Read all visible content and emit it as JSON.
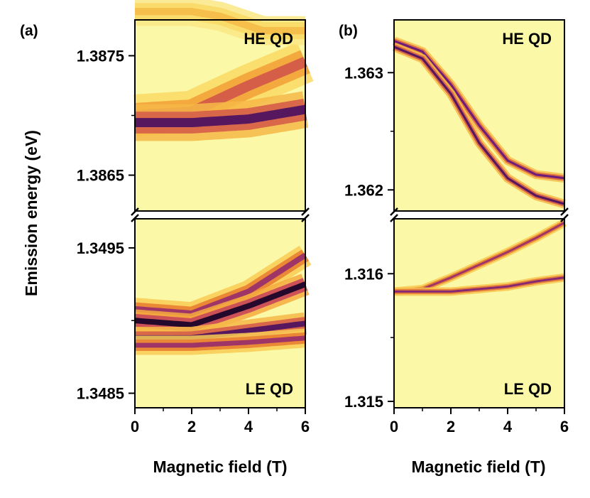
{
  "chart_data": [
    {
      "type": "heatmap",
      "panel_label": "(a)",
      "xlabel": "Magnetic field (T)",
      "ylabel": "Emission energy (eV)",
      "xlim": [
        0,
        6
      ],
      "x_ticks": [
        0,
        2,
        4,
        6
      ],
      "x_tick_labels": [
        "0",
        "2",
        "4",
        "6"
      ],
      "x_minor_ticks": [
        1,
        3,
        5
      ],
      "colors": {
        "colormap": "inferno-like",
        "low": "#fbf8a8",
        "high": "#0c0212",
        "gap": "#ffffff"
      },
      "segments": [
        {
          "name": "upper",
          "qd_label": "HE QD",
          "label_corner": "top-right",
          "ylim": [
            1.3862,
            1.3878
          ],
          "y_ticks": [
            1.3865,
            1.3875
          ],
          "y_tick_labels": [
            "1.3865",
            "1.3875"
          ],
          "y_minor_ticks": [
            1.387
          ],
          "lines": [
            {
              "points": [
                [
                  0,
                  1.387
                ],
                [
                  2,
                  1.38703
                ],
                [
                  4,
                  1.38725
                ],
                [
                  6,
                  1.38745
                ]
              ],
              "width_ev": 0.00016,
              "intensity": 0.55
            },
            {
              "points": [
                [
                  0,
                  1.38694
                ],
                [
                  2,
                  1.38694
                ],
                [
                  4,
                  1.38697
                ],
                [
                  6,
                  1.38705
                ]
              ],
              "width_ev": 0.00014,
              "intensity": 0.85
            },
            {
              "points": [
                [
                  0,
                  1.38787
                ],
                [
                  1,
                  1.38787
                ],
                [
                  2,
                  1.38787
                ],
                [
                  3,
                  1.38783
                ],
                [
                  4.5,
                  1.38771
                ],
                [
                  6,
                  1.38771
                ]
              ],
              "width_ev": 0.00011,
              "intensity": 0.28
            }
          ]
        },
        {
          "name": "lower",
          "qd_label": "LE QD",
          "label_corner": "bottom-right",
          "ylim": [
            1.3484,
            1.3497
          ],
          "y_ticks": [
            1.3485,
            1.3495
          ],
          "y_tick_labels": [
            "1.3485",
            "1.3495"
          ],
          "y_minor_ticks": [
            1.349
          ],
          "lines": [
            {
              "points": [
                [
                  0,
                  1.34908
                ],
                [
                  2,
                  1.34905
                ],
                [
                  4,
                  1.3492
                ],
                [
                  6,
                  1.34945
                ]
              ],
              "width_ev": 7e-05,
              "intensity": 0.7
            },
            {
              "points": [
                [
                  0,
                  1.349
                ],
                [
                  2,
                  1.34897
                ],
                [
                  4,
                  1.3491
                ],
                [
                  6,
                  1.34925
                ]
              ],
              "width_ev": 7e-05,
              "intensity": 0.95
            },
            {
              "points": [
                [
                  0,
                  1.34888
                ],
                [
                  2,
                  1.34888
                ],
                [
                  4,
                  1.34893
                ],
                [
                  6,
                  1.34898
                ]
              ],
              "width_ev": 7e-05,
              "intensity": 0.85
            },
            {
              "points": [
                [
                  0,
                  1.34883
                ],
                [
                  2,
                  1.34883
                ],
                [
                  4,
                  1.34885
                ],
                [
                  6,
                  1.34888
                ]
              ],
              "width_ev": 6e-05,
              "intensity": 0.7
            }
          ]
        }
      ]
    },
    {
      "type": "heatmap",
      "panel_label": "(b)",
      "xlabel": "Magnetic field (T)",
      "ylabel": "",
      "xlim": [
        0,
        6
      ],
      "x_ticks": [
        0,
        2,
        4,
        6
      ],
      "x_tick_labels": [
        "0",
        "2",
        "4",
        "6"
      ],
      "x_minor_ticks": [
        1,
        3,
        5
      ],
      "colors": {
        "colormap": "inferno-like",
        "low": "#fbf8a8",
        "high": "#0c0212",
        "gap": "#ffffff"
      },
      "segments": [
        {
          "name": "upper",
          "qd_label": "HE QD",
          "label_corner": "top-right",
          "ylim": [
            1.36182,
            1.36345
          ],
          "y_ticks": [
            1.362,
            1.363
          ],
          "y_tick_labels": [
            "1.362",
            "1.363"
          ],
          "y_minor_ticks": [
            1.3625
          ],
          "lines": [
            {
              "points": [
                [
                  0,
                  1.36327
                ],
                [
                  1,
                  1.36318
                ],
                [
                  2,
                  1.3629
                ],
                [
                  3,
                  1.36255
                ],
                [
                  4,
                  1.36225
                ],
                [
                  5,
                  1.36213
                ],
                [
                  6,
                  1.3621
                ]
              ],
              "width_ev": 3.5e-05,
              "intensity": 0.8
            },
            {
              "points": [
                [
                  0,
                  1.36322
                ],
                [
                  1,
                  1.36312
                ],
                [
                  2,
                  1.36282
                ],
                [
                  3,
                  1.3624
                ],
                [
                  4,
                  1.3621
                ],
                [
                  5,
                  1.36195
                ],
                [
                  6,
                  1.36188
                ]
              ],
              "width_ev": 3.5e-05,
              "intensity": 0.85
            }
          ]
        },
        {
          "name": "lower",
          "qd_label": "LE QD",
          "label_corner": "bottom-right",
          "ylim": [
            1.31495,
            1.31643
          ],
          "y_ticks": [
            1.315,
            1.316
          ],
          "y_tick_labels": [
            "1.315",
            "1.316"
          ],
          "y_minor_ticks": [
            1.3155
          ],
          "lines": [
            {
              "points": [
                [
                  0,
                  1.31586
                ],
                [
                  1,
                  1.31588
                ],
                [
                  2,
                  1.31597
                ],
                [
                  3,
                  1.31607
                ],
                [
                  4,
                  1.31617
                ],
                [
                  5,
                  1.31628
                ],
                [
                  6,
                  1.3164
                ]
              ],
              "width_ev": 3e-05,
              "intensity": 0.7
            },
            {
              "points": [
                [
                  0,
                  1.31586
                ],
                [
                  2,
                  1.31586
                ],
                [
                  3,
                  1.31588
                ],
                [
                  4,
                  1.3159
                ],
                [
                  5,
                  1.31594
                ],
                [
                  6,
                  1.31597
                ]
              ],
              "width_ev": 3e-05,
              "intensity": 0.75
            }
          ]
        }
      ]
    }
  ]
}
